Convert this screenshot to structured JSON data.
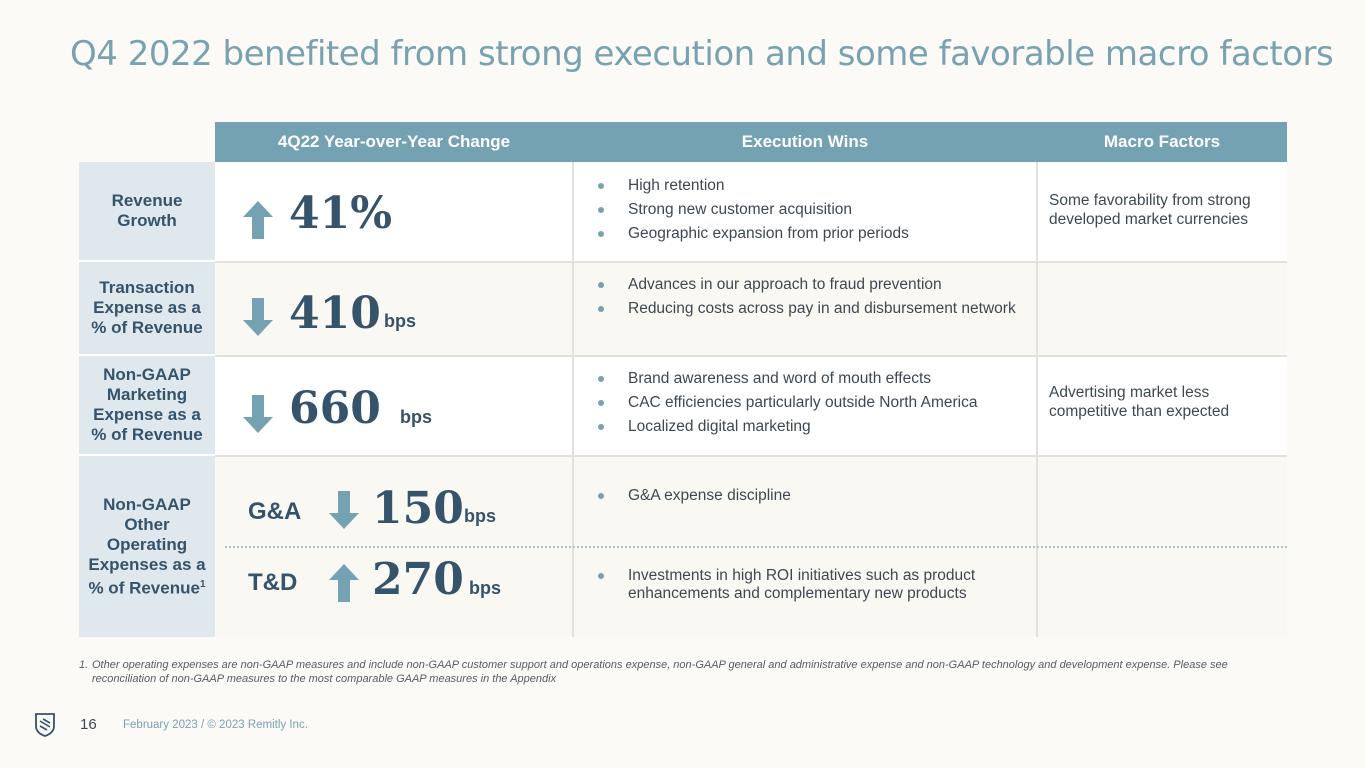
{
  "slide": {
    "title": "Q4 2022 benefited from strong execution and some favorable macro factors",
    "page_number": "16",
    "footer_date": "February 2023 / © 2023 Remitly Inc.",
    "logo_icon": "remitly-shield-logo"
  },
  "table": {
    "headers": {
      "change": "4Q22 Year-over-Year Change",
      "execution": "Execution Wins",
      "macro": "Macro Factors"
    },
    "rows": {
      "revenue": {
        "label": "Revenue Growth",
        "direction": "up",
        "value": "41%",
        "wins": [
          "High retention",
          "Strong new customer acquisition",
          "Geographic expansion from prior periods"
        ],
        "macro": "Some favorability from strong developed market currencies"
      },
      "transaction": {
        "label": "Transaction Expense as a % of Revenue",
        "direction": "down",
        "value": "410",
        "unit": "bps",
        "wins": [
          "Advances in our approach to fraud prevention",
          "Reducing costs across pay in and disbursement network"
        ],
        "macro": ""
      },
      "marketing": {
        "label": "Non-GAAP Marketing Expense as a % of Revenue",
        "direction": "down",
        "value": "660",
        "unit": "bps",
        "wins": [
          "Brand awareness and word of mouth effects",
          "CAC efficiencies particularly outside North America",
          "Localized digital marketing"
        ],
        "macro": "Advertising market less competitive than expected"
      },
      "other": {
        "label": "Non-GAAP Other Operating Expenses as a % of Revenue",
        "footnote_marker": "1",
        "ga": {
          "label": "G&A",
          "direction": "down",
          "value": "150",
          "unit": "bps",
          "wins": [
            "G&A expense discipline"
          ]
        },
        "td": {
          "label": "T&D",
          "direction": "up",
          "value": "270",
          "unit": "bps",
          "wins": [
            "Investments in high ROI initiatives such as product enhancements and complementary new products"
          ]
        }
      }
    }
  },
  "footnote": {
    "number": "1.",
    "text": "Other operating expenses are non-GAAP measures and include non-GAAP customer support and operations expense, non-GAAP general and administrative expense and non-GAAP technology and development expense. Please see reconciliation of non-GAAP measures to the most comparable GAAP measures in the Appendix"
  },
  "colors": {
    "accent": "#75a2b2",
    "title": "#79a2b1",
    "navy": "#35536b",
    "label_bg": "#dfe8ec",
    "background": "#fbfaf7"
  }
}
